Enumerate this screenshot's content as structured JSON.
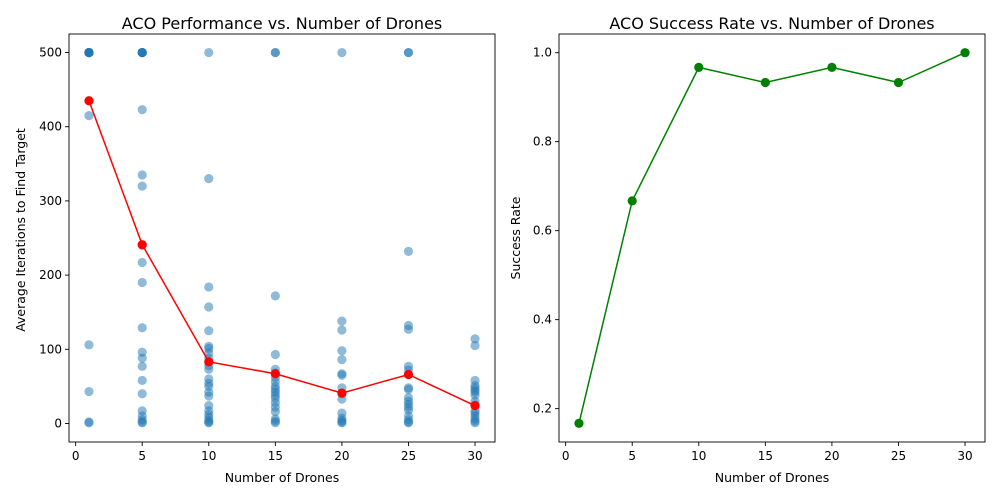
{
  "chart_data": [
    {
      "type": "scatter",
      "title": "ACO Performance vs. Number of Drones",
      "xlabel": "Number of Drones",
      "ylabel": "Average Iterations to Find Target",
      "xlim": [
        -0.5,
        31.5
      ],
      "ylim": [
        -25,
        525
      ],
      "xticks": [
        0,
        5,
        10,
        15,
        20,
        25,
        30
      ],
      "yticks": [
        0,
        100,
        200,
        300,
        400,
        500
      ],
      "grid": false,
      "colors": {
        "scatter": "#1f77b4",
        "mean_line": "#ff0000"
      },
      "scatter_points": [
        [
          1,
          500
        ],
        [
          1,
          500
        ],
        [
          1,
          500
        ],
        [
          1,
          500
        ],
        [
          1,
          500
        ],
        [
          1,
          500
        ],
        [
          1,
          500
        ],
        [
          1,
          500
        ],
        [
          1,
          415
        ],
        [
          1,
          106
        ],
        [
          1,
          43
        ],
        [
          1,
          2
        ],
        [
          1,
          1
        ],
        [
          5,
          500
        ],
        [
          5,
          500
        ],
        [
          5,
          500
        ],
        [
          5,
          500
        ],
        [
          5,
          500
        ],
        [
          5,
          500
        ],
        [
          5,
          423
        ],
        [
          5,
          335
        ],
        [
          5,
          320
        ],
        [
          5,
          240
        ],
        [
          5,
          217
        ],
        [
          5,
          190
        ],
        [
          5,
          129
        ],
        [
          5,
          96
        ],
        [
          5,
          88
        ],
        [
          5,
          77
        ],
        [
          5,
          58
        ],
        [
          5,
          40
        ],
        [
          5,
          17
        ],
        [
          5,
          10
        ],
        [
          5,
          5
        ],
        [
          5,
          2
        ],
        [
          5,
          1
        ],
        [
          10,
          500
        ],
        [
          10,
          330
        ],
        [
          10,
          184
        ],
        [
          10,
          157
        ],
        [
          10,
          125
        ],
        [
          10,
          104
        ],
        [
          10,
          101
        ],
        [
          10,
          95
        ],
        [
          10,
          88
        ],
        [
          10,
          78
        ],
        [
          10,
          73
        ],
        [
          10,
          60
        ],
        [
          10,
          54
        ],
        [
          10,
          50
        ],
        [
          10,
          42
        ],
        [
          10,
          37
        ],
        [
          10,
          24
        ],
        [
          10,
          17
        ],
        [
          10,
          12
        ],
        [
          10,
          8
        ],
        [
          10,
          4
        ],
        [
          10,
          2
        ],
        [
          10,
          1
        ],
        [
          15,
          500
        ],
        [
          15,
          500
        ],
        [
          15,
          172
        ],
        [
          15,
          93
        ],
        [
          15,
          73
        ],
        [
          15,
          68
        ],
        [
          15,
          62
        ],
        [
          15,
          56
        ],
        [
          15,
          50
        ],
        [
          15,
          46
        ],
        [
          15,
          42
        ],
        [
          15,
          38
        ],
        [
          15,
          34
        ],
        [
          15,
          28
        ],
        [
          15,
          22
        ],
        [
          15,
          16
        ],
        [
          15,
          6
        ],
        [
          15,
          3
        ],
        [
          15,
          1
        ],
        [
          20,
          500
        ],
        [
          20,
          138
        ],
        [
          20,
          126
        ],
        [
          20,
          98
        ],
        [
          20,
          86
        ],
        [
          20,
          67
        ],
        [
          20,
          65
        ],
        [
          20,
          48
        ],
        [
          20,
          40
        ],
        [
          20,
          33
        ],
        [
          20,
          14
        ],
        [
          20,
          7
        ],
        [
          20,
          4
        ],
        [
          20,
          2
        ],
        [
          20,
          1
        ],
        [
          25,
          500
        ],
        [
          25,
          500
        ],
        [
          25,
          232
        ],
        [
          25,
          132
        ],
        [
          25,
          127
        ],
        [
          25,
          77
        ],
        [
          25,
          72
        ],
        [
          25,
          66
        ],
        [
          25,
          48
        ],
        [
          25,
          46
        ],
        [
          25,
          35
        ],
        [
          25,
          30
        ],
        [
          25,
          26
        ],
        [
          25,
          22
        ],
        [
          25,
          18
        ],
        [
          25,
          10
        ],
        [
          25,
          5
        ],
        [
          25,
          2
        ],
        [
          25,
          1
        ],
        [
          30,
          114
        ],
        [
          30,
          105
        ],
        [
          30,
          58
        ],
        [
          30,
          51
        ],
        [
          30,
          48
        ],
        [
          30,
          45
        ],
        [
          30,
          42
        ],
        [
          30,
          38
        ],
        [
          30,
          30
        ],
        [
          30,
          25
        ],
        [
          30,
          17
        ],
        [
          30,
          14
        ],
        [
          30,
          10
        ],
        [
          30,
          6
        ],
        [
          30,
          3
        ],
        [
          30,
          1
        ]
      ],
      "series": [
        {
          "x": [
            1,
            5,
            10,
            15,
            20,
            25,
            30
          ],
          "values": [
            435,
            241,
            83,
            67,
            41,
            66,
            24
          ]
        }
      ]
    },
    {
      "type": "line",
      "title": "ACO Success Rate vs. Number of Drones",
      "xlabel": "Number of Drones",
      "ylabel": "Success Rate",
      "xlim": [
        -0.5,
        31.5
      ],
      "ylim": [
        0.125,
        1.042
      ],
      "xticks": [
        0,
        5,
        10,
        15,
        20,
        25,
        30
      ],
      "yticks": [
        0.2,
        0.4,
        0.6,
        0.8,
        1.0
      ],
      "ytick_labels": [
        "0.2",
        "0.4",
        "0.6",
        "0.8",
        "1.0"
      ],
      "grid": false,
      "colors": {
        "line": "#008000"
      },
      "series": [
        {
          "x": [
            1,
            5,
            10,
            15,
            20,
            25,
            30
          ],
          "values": [
            0.167,
            0.667,
            0.967,
            0.933,
            0.967,
            0.933,
            1.0
          ]
        }
      ]
    }
  ]
}
